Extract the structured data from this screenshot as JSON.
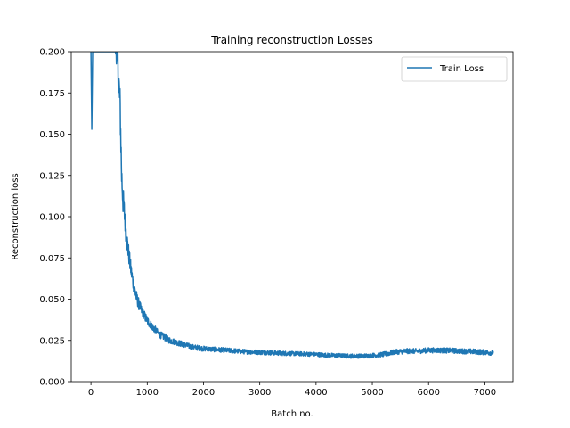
{
  "chart_data": {
    "type": "line",
    "title": "Training reconstruction Losses",
    "xlabel": "Batch no.",
    "ylabel": "Reconstruction loss",
    "xlim": [
      -350,
      7500
    ],
    "ylim": [
      0,
      0.2
    ],
    "xticks": [
      0,
      1000,
      2000,
      3000,
      4000,
      5000,
      6000,
      7000
    ],
    "xtick_labels": [
      "0",
      "1000",
      "2000",
      "3000",
      "4000",
      "5000",
      "6000",
      "7000"
    ],
    "yticks": [
      0,
      0.025,
      0.05,
      0.075,
      0.1,
      0.125,
      0.15,
      0.175,
      0.2
    ],
    "ytick_labels": [
      "0.000",
      "0.025",
      "0.050",
      "0.075",
      "0.100",
      "0.125",
      "0.150",
      "0.175",
      "0.200"
    ],
    "grid": false,
    "legend": {
      "position": "top-right",
      "entries": [
        "Train Loss"
      ]
    },
    "colors": {
      "series": "#1f77b4"
    },
    "series": [
      {
        "name": "Train Loss",
        "x": [
          0,
          15,
          30,
          45,
          430,
          460,
          490,
          520,
          545,
          570,
          600,
          630,
          660,
          700,
          750,
          800,
          850,
          900,
          1000,
          1100,
          1200,
          1300,
          1400,
          1500,
          1600,
          1700,
          1800,
          2000,
          2200,
          2400,
          2600,
          2800,
          3000,
          3200,
          3400,
          3600,
          3800,
          4000,
          4200,
          4400,
          4600,
          4800,
          5000,
          5200,
          5400,
          5600,
          5800,
          6000,
          6200,
          6400,
          6600,
          6800,
          7000,
          7150
        ],
        "y": [
          0.2,
          0.153,
          0.2,
          0.2,
          0.2,
          0.2,
          0.185,
          0.165,
          0.125,
          0.11,
          0.1,
          0.088,
          0.08,
          0.07,
          0.06,
          0.052,
          0.047,
          0.043,
          0.037,
          0.033,
          0.029,
          0.027,
          0.025,
          0.024,
          0.023,
          0.022,
          0.021,
          0.02,
          0.0195,
          0.019,
          0.0185,
          0.018,
          0.0178,
          0.0175,
          0.0172,
          0.017,
          0.0168,
          0.0165,
          0.016,
          0.0158,
          0.0155,
          0.0155,
          0.0158,
          0.0165,
          0.018,
          0.0185,
          0.0185,
          0.019,
          0.019,
          0.0188,
          0.0185,
          0.0182,
          0.0178,
          0.0175
        ],
        "noise": [
          0,
          0,
          0,
          0,
          0,
          0.01,
          0.012,
          0.012,
          0.01,
          0.009,
          0.008,
          0.007,
          0.006,
          0.005,
          0.0045,
          0.004,
          0.0035,
          0.003,
          0.0028,
          0.0025,
          0.0022,
          0.002,
          0.002,
          0.0018,
          0.0018,
          0.0017,
          0.0016,
          0.0016,
          0.0015,
          0.0015,
          0.0015,
          0.0014,
          0.0014,
          0.0014,
          0.0014,
          0.0013,
          0.0013,
          0.0013,
          0.0013,
          0.0013,
          0.0013,
          0.0013,
          0.0014,
          0.0015,
          0.0016,
          0.0016,
          0.0016,
          0.0016,
          0.0016,
          0.0016,
          0.0016,
          0.0016,
          0.0016,
          0.0016
        ]
      }
    ]
  }
}
